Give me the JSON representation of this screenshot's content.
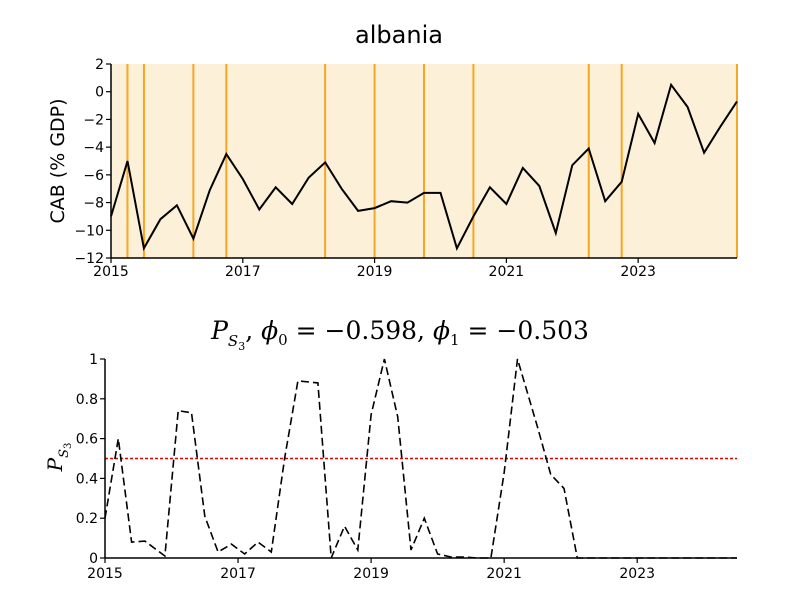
{
  "chart_data": [
    {
      "type": "line",
      "title": "albania",
      "ylabel": "CAB (% GDP)",
      "xlabel": "",
      "xlim": [
        2015.0,
        2024.5
      ],
      "ylim": [
        -12,
        2
      ],
      "x_ticks": [
        2015,
        2017,
        2019,
        2021,
        2023
      ],
      "x_tick_labels": [
        "2015",
        "2017",
        "2019",
        "2021",
        "2023"
      ],
      "y_ticks": [
        2,
        0,
        -2,
        -4,
        -6,
        -8,
        -10,
        -12
      ],
      "y_tick_labels": [
        "2",
        "0",
        "−2",
        "−4",
        "−6",
        "−8",
        "−10",
        "−12"
      ],
      "background_color": "#fdf0d8",
      "vline_color": "#f5a623",
      "line_color": "#000000",
      "regime_lines_x": [
        2015.25,
        2015.5,
        2016.25,
        2016.75,
        2018.25,
        2019.0,
        2019.75,
        2020.5,
        2022.25,
        2022.75,
        2024.5
      ],
      "series": [
        {
          "name": "CAB",
          "x": [
            2015.0,
            2015.25,
            2015.5,
            2015.75,
            2016.0,
            2016.25,
            2016.5,
            2016.75,
            2017.0,
            2017.25,
            2017.5,
            2017.75,
            2018.0,
            2018.25,
            2018.5,
            2018.75,
            2019.0,
            2019.25,
            2019.5,
            2019.75,
            2020.0,
            2020.25,
            2020.5,
            2020.75,
            2021.0,
            2021.25,
            2021.5,
            2021.75,
            2022.0,
            2022.25,
            2022.5,
            2022.75,
            2023.0,
            2023.25,
            2023.5,
            2023.75,
            2024.0,
            2024.25,
            2024.5
          ],
          "y": [
            -9.0,
            -5.0,
            -11.3,
            -9.2,
            -8.2,
            -10.6,
            -7.1,
            -4.5,
            -6.3,
            -8.5,
            -6.9,
            -8.1,
            -6.2,
            -5.1,
            -7.0,
            -8.6,
            -8.4,
            -7.9,
            -8.0,
            -7.3,
            -7.3,
            -11.3,
            -9.0,
            -6.9,
            -8.1,
            -5.5,
            -6.8,
            -10.2,
            -5.3,
            -4.1,
            -7.9,
            -6.5,
            -1.6,
            -3.7,
            0.5,
            -1.1,
            -4.4,
            -2.5,
            -0.7
          ]
        }
      ]
    },
    {
      "type": "line",
      "title": "P_S3, phi0 = -0.598, phi1 = -0.503",
      "title_parts": {
        "p": "P",
        "p_sub": "S",
        "p_subsub": "3",
        "mid1": ", ",
        "phi0": "ϕ",
        "phi0_sub": "0",
        "eq0": " = −0.598, ",
        "phi1": "ϕ",
        "phi1_sub": "1",
        "eq1": " = −0.503"
      },
      "ylabel": "P_S3",
      "ylabel_parts": {
        "p": "P",
        "sub": "S",
        "subsub": "3"
      },
      "xlabel": "",
      "xlim": [
        2015.0,
        2024.5
      ],
      "ylim": [
        0,
        1
      ],
      "x_ticks": [
        2015,
        2017,
        2019,
        2021,
        2023
      ],
      "x_tick_labels": [
        "2015",
        "2017",
        "2019",
        "2021",
        "2023"
      ],
      "y_ticks": [
        0,
        0.2,
        0.4,
        0.6,
        0.8,
        1
      ],
      "y_tick_labels": [
        "0",
        "0.2",
        "0.4",
        "0.6",
        "0.8",
        "1"
      ],
      "threshold": 0.5,
      "threshold_color": "#e00000",
      "line_color": "#000000",
      "series": [
        {
          "name": "P_S3",
          "x": [
            2015.0,
            2015.2,
            2015.4,
            2015.6,
            2015.9,
            2016.1,
            2016.3,
            2016.5,
            2016.7,
            2016.9,
            2017.1,
            2017.3,
            2017.5,
            2017.7,
            2017.9,
            2018.2,
            2018.4,
            2018.6,
            2018.8,
            2019.0,
            2019.2,
            2019.4,
            2019.6,
            2019.8,
            2020.0,
            2020.2,
            2020.4,
            2020.6,
            2020.8,
            2021.0,
            2021.2,
            2021.5,
            2021.7,
            2021.9,
            2022.1,
            2022.3,
            2022.5,
            2022.7,
            2022.9,
            2023.1,
            2023.3,
            2023.5,
            2023.7,
            2023.9,
            2024.1,
            2024.3,
            2024.5
          ],
          "y": [
            0.2,
            0.6,
            0.08,
            0.085,
            0.01,
            0.74,
            0.73,
            0.21,
            0.03,
            0.07,
            0.02,
            0.08,
            0.03,
            0.5,
            0.89,
            0.88,
            0.0,
            0.16,
            0.04,
            0.72,
            1.0,
            0.71,
            0.04,
            0.2,
            0.02,
            0.005,
            0.005,
            0.0,
            0.0,
            0.43,
            1.0,
            0.66,
            0.42,
            0.35,
            0.0,
            0.0,
            0.0,
            0.0,
            0.0,
            0.0,
            0.0,
            0.0,
            0.0,
            0.0,
            0.0,
            0.0,
            0.0
          ]
        }
      ]
    }
  ]
}
